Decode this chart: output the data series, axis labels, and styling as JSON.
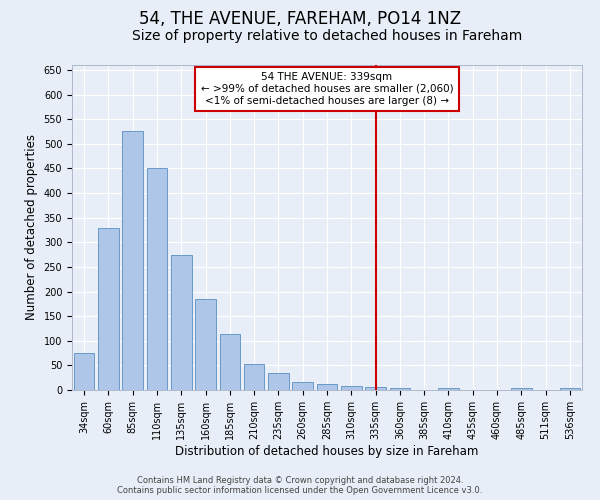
{
  "title": "54, THE AVENUE, FAREHAM, PO14 1NZ",
  "subtitle": "Size of property relative to detached houses in Fareham",
  "xlabel": "Distribution of detached houses by size in Fareham",
  "ylabel": "Number of detached properties",
  "footer_line1": "Contains HM Land Registry data © Crown copyright and database right 2024.",
  "footer_line2": "Contains public sector information licensed under the Open Government Licence v3.0.",
  "categories": [
    "34sqm",
    "60sqm",
    "85sqm",
    "110sqm",
    "135sqm",
    "160sqm",
    "185sqm",
    "210sqm",
    "235sqm",
    "260sqm",
    "285sqm",
    "310sqm",
    "335sqm",
    "360sqm",
    "385sqm",
    "410sqm",
    "435sqm",
    "460sqm",
    "485sqm",
    "511sqm",
    "536sqm"
  ],
  "values": [
    75,
    330,
    525,
    450,
    275,
    185,
    113,
    52,
    35,
    17,
    13,
    8,
    6,
    5,
    0,
    5,
    0,
    0,
    5,
    0,
    5
  ],
  "bar_color": "#aec6e8",
  "bar_edge_color": "#5a8fc2",
  "bar_width": 0.85,
  "vline_x": 12,
  "vline_color": "#cc0000",
  "annotation_text": "54 THE AVENUE: 339sqm\n← >99% of detached houses are smaller (2,060)\n<1% of semi-detached houses are larger (8) →",
  "annotation_box_color": "#cc0000",
  "annotation_text_color": "#000000",
  "annotation_bg": "#ffffff",
  "ylim": [
    0,
    660
  ],
  "yticks": [
    0,
    50,
    100,
    150,
    200,
    250,
    300,
    350,
    400,
    450,
    500,
    550,
    600,
    650
  ],
  "bg_color": "#e8eef7",
  "grid_color": "#ffffff",
  "title_fontsize": 12,
  "subtitle_fontsize": 10,
  "axis_label_fontsize": 8.5,
  "tick_fontsize": 7,
  "footer_fontsize": 6,
  "annotation_fontsize": 7.5
}
